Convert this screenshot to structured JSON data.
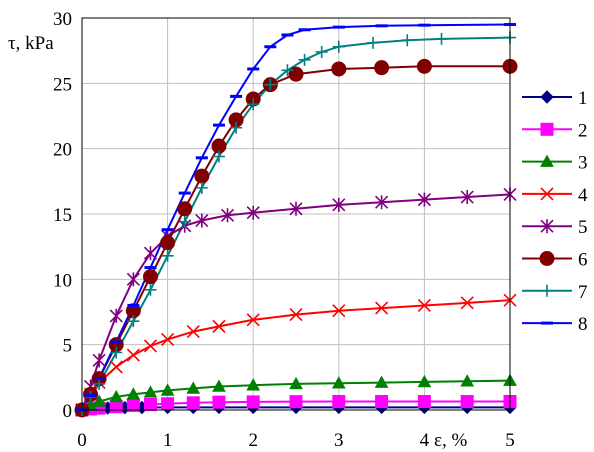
{
  "chart_data": {
    "type": "line",
    "title": "",
    "xlabel": "ε, %",
    "ylabel": "τ, kPa",
    "xlim": [
      0,
      5
    ],
    "ylim": [
      0,
      30
    ],
    "x_ticks": [
      0,
      1,
      2,
      3,
      4,
      5
    ],
    "y_ticks": [
      0,
      5,
      10,
      15,
      20,
      25,
      30
    ],
    "grid": true,
    "legend_position": "right",
    "series": [
      {
        "name": "1",
        "color": "#000080",
        "marker": "diamond",
        "x": [
          0,
          0.05,
          0.1,
          0.2,
          0.3,
          0.5,
          0.7,
          1.0,
          1.3,
          1.6,
          2.0,
          2.5,
          3.0,
          3.5,
          4.0,
          4.5,
          5.0
        ],
        "y": [
          0,
          0.04,
          0.08,
          0.12,
          0.15,
          0.18,
          0.19,
          0.2,
          0.2,
          0.2,
          0.2,
          0.2,
          0.2,
          0.2,
          0.2,
          0.2,
          0.2
        ]
      },
      {
        "name": "2",
        "color": "#ff00ff",
        "marker": "square",
        "x": [
          0,
          0.1,
          0.2,
          0.4,
          0.6,
          0.8,
          1.0,
          1.3,
          1.6,
          2.0,
          2.5,
          3.0,
          3.5,
          4.0,
          4.5,
          5.0
        ],
        "y": [
          0,
          0.08,
          0.15,
          0.25,
          0.35,
          0.42,
          0.48,
          0.55,
          0.6,
          0.62,
          0.64,
          0.65,
          0.65,
          0.65,
          0.65,
          0.65
        ]
      },
      {
        "name": "3",
        "color": "#008000",
        "marker": "triangle",
        "x": [
          0,
          0.1,
          0.2,
          0.4,
          0.6,
          0.8,
          1.0,
          1.3,
          1.6,
          2.0,
          2.5,
          3.0,
          3.5,
          4.0,
          4.5,
          5.0
        ],
        "y": [
          0,
          0.35,
          0.65,
          1.0,
          1.2,
          1.35,
          1.5,
          1.65,
          1.8,
          1.9,
          2.0,
          2.05,
          2.1,
          2.15,
          2.2,
          2.25
        ]
      },
      {
        "name": "4",
        "color": "#ff0000",
        "marker": "x",
        "x": [
          0,
          0.1,
          0.2,
          0.4,
          0.6,
          0.8,
          1.0,
          1.3,
          1.6,
          2.0,
          2.5,
          3.0,
          3.5,
          4.0,
          4.5,
          5.0
        ],
        "y": [
          0,
          1.2,
          2.1,
          3.3,
          4.2,
          4.9,
          5.4,
          6.0,
          6.4,
          6.9,
          7.3,
          7.6,
          7.8,
          8.0,
          8.2,
          8.4
        ]
      },
      {
        "name": "5",
        "color": "#800080",
        "marker": "asterisk",
        "x": [
          0,
          0.1,
          0.2,
          0.4,
          0.6,
          0.8,
          1.0,
          1.2,
          1.4,
          1.7,
          2.0,
          2.5,
          3.0,
          3.5,
          4.0,
          4.5,
          5.0
        ],
        "y": [
          0,
          1.8,
          3.8,
          7.2,
          10.0,
          12.0,
          13.3,
          14.1,
          14.5,
          14.9,
          15.1,
          15.4,
          15.7,
          15.9,
          16.1,
          16.3,
          16.5
        ]
      },
      {
        "name": "6",
        "color": "#800000",
        "marker": "circle",
        "x": [
          0,
          0.1,
          0.2,
          0.4,
          0.6,
          0.8,
          1.0,
          1.2,
          1.4,
          1.6,
          1.8,
          2.0,
          2.2,
          2.5,
          3.0,
          3.5,
          4.0,
          5.0
        ],
        "y": [
          0,
          1.2,
          2.4,
          5.0,
          7.6,
          10.2,
          12.8,
          15.4,
          17.9,
          20.2,
          22.2,
          23.8,
          24.9,
          25.7,
          26.1,
          26.2,
          26.3,
          26.3
        ]
      },
      {
        "name": "7",
        "color": "#008080",
        "marker": "plus",
        "x": [
          0,
          0.1,
          0.2,
          0.4,
          0.6,
          0.8,
          1.0,
          1.2,
          1.4,
          1.6,
          1.8,
          2.0,
          2.2,
          2.4,
          2.6,
          2.8,
          3.0,
          3.4,
          3.8,
          4.2,
          5.0
        ],
        "y": [
          0,
          1.0,
          2.0,
          4.4,
          6.8,
          9.2,
          11.8,
          14.4,
          17.0,
          19.4,
          21.6,
          23.4,
          24.9,
          26.0,
          26.8,
          27.4,
          27.8,
          28.1,
          28.3,
          28.4,
          28.5
        ]
      },
      {
        "name": "8",
        "color": "#0000ff",
        "marker": "dash",
        "x": [
          0,
          0.1,
          0.2,
          0.4,
          0.6,
          0.8,
          1.0,
          1.2,
          1.4,
          1.6,
          1.8,
          2.0,
          2.2,
          2.4,
          2.6,
          3.0,
          3.5,
          4.0,
          5.0
        ],
        "y": [
          0,
          1.1,
          2.4,
          5.2,
          8.0,
          10.9,
          13.8,
          16.6,
          19.3,
          21.8,
          24.0,
          26.1,
          27.8,
          28.7,
          29.1,
          29.3,
          29.4,
          29.45,
          29.5
        ]
      }
    ]
  }
}
